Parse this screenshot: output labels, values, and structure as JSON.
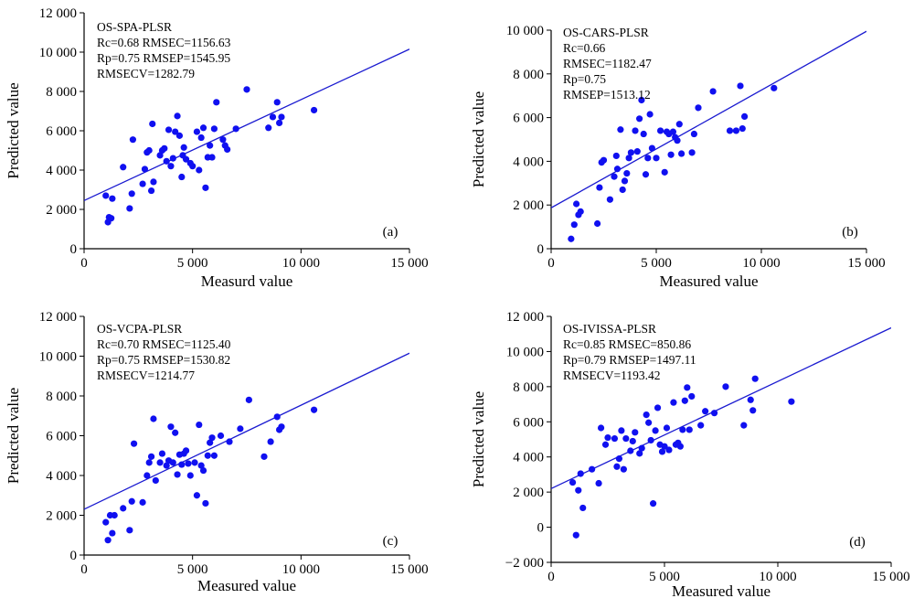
{
  "chart_data": [
    {
      "type": "scatter",
      "panel_label": "(a)",
      "xlabel": "Measurd value",
      "ylabel": "Predicted value",
      "xlim": [
        0,
        15000
      ],
      "ylim": [
        0,
        12000
      ],
      "xticks": [
        0,
        5000,
        10000,
        15000
      ],
      "xtick_labels": [
        "0",
        "5 000",
        "10 000",
        "15 000"
      ],
      "yticks": [
        0,
        2000,
        4000,
        6000,
        8000,
        10000,
        12000
      ],
      "ytick_labels": [
        "0",
        "2 000",
        "4 000",
        "6 000",
        "8 000",
        "10 000",
        "12 000"
      ],
      "annotations": [
        "OS-SPA-PLSR",
        "Rc=0.68 RMSEC=1156.63",
        "Rp=0.75 RMSEP=1545.95",
        "RMSECV=1282.79"
      ],
      "fit_line": {
        "x": [
          0,
          15000
        ],
        "y": [
          2450,
          10150
        ]
      },
      "marker_color": "#1010f0",
      "line_color": "#1a1ad0",
      "points": [
        [
          1000,
          2700
        ],
        [
          1100,
          1350
        ],
        [
          1150,
          1600
        ],
        [
          1250,
          1550
        ],
        [
          1300,
          2550
        ],
        [
          1800,
          4150
        ],
        [
          2100,
          2050
        ],
        [
          2200,
          2800
        ],
        [
          2250,
          5550
        ],
        [
          2700,
          3300
        ],
        [
          2800,
          4050
        ],
        [
          2900,
          4900
        ],
        [
          3000,
          5000
        ],
        [
          3100,
          2950
        ],
        [
          3150,
          6350
        ],
        [
          3200,
          3400
        ],
        [
          3500,
          4750
        ],
        [
          3600,
          5000
        ],
        [
          3700,
          5100
        ],
        [
          3800,
          4450
        ],
        [
          3900,
          6050
        ],
        [
          4000,
          4200
        ],
        [
          4100,
          4600
        ],
        [
          4200,
          5950
        ],
        [
          4300,
          6750
        ],
        [
          4400,
          5750
        ],
        [
          4500,
          3650
        ],
        [
          4550,
          4750
        ],
        [
          4600,
          5150
        ],
        [
          4700,
          4550
        ],
        [
          4900,
          4350
        ],
        [
          5000,
          4200
        ],
        [
          5200,
          5950
        ],
        [
          5300,
          4000
        ],
        [
          5400,
          5650
        ],
        [
          5500,
          6150
        ],
        [
          5600,
          3100
        ],
        [
          5700,
          4650
        ],
        [
          5800,
          5250
        ],
        [
          5900,
          4650
        ],
        [
          6000,
          6100
        ],
        [
          6100,
          7450
        ],
        [
          6400,
          5550
        ],
        [
          6500,
          5250
        ],
        [
          6600,
          5050
        ],
        [
          7000,
          6100
        ],
        [
          7500,
          8100
        ],
        [
          8500,
          6150
        ],
        [
          8700,
          6700
        ],
        [
          8900,
          7450
        ],
        [
          9000,
          6400
        ],
        [
          9100,
          6700
        ],
        [
          10600,
          7050
        ]
      ]
    },
    {
      "type": "scatter",
      "panel_label": "(b)",
      "xlabel": "Measured value",
      "ylabel": "Predicted value",
      "xlim": [
        0,
        15000
      ],
      "ylim": [
        0,
        10000
      ],
      "xticks": [
        0,
        5000,
        10000,
        15000
      ],
      "xtick_labels": [
        "0",
        "5 000",
        "10 000",
        "15 000"
      ],
      "yticks": [
        0,
        2000,
        4000,
        6000,
        8000,
        10000
      ],
      "ytick_labels": [
        "0",
        "2 000",
        "4 000",
        "6 000",
        "8 000",
        "10 000"
      ],
      "annotations": [
        "OS-CARS-PLSR",
        "Rc=0.66",
        "RMSEC=1182.47",
        "Rp=0.75",
        "RMSEP=1513.12"
      ],
      "fit_line": {
        "x": [
          0,
          15000
        ],
        "y": [
          1870,
          9950
        ]
      },
      "marker_color": "#1010f0",
      "line_color": "#1a1ad0",
      "points": [
        [
          950,
          450
        ],
        [
          1100,
          1100
        ],
        [
          1200,
          2050
        ],
        [
          1300,
          1550
        ],
        [
          1400,
          1700
        ],
        [
          2200,
          1150
        ],
        [
          2300,
          2800
        ],
        [
          2400,
          3950
        ],
        [
          2500,
          4050
        ],
        [
          2800,
          2250
        ],
        [
          3000,
          3300
        ],
        [
          3100,
          4250
        ],
        [
          3150,
          3650
        ],
        [
          3300,
          5450
        ],
        [
          3400,
          2700
        ],
        [
          3500,
          3100
        ],
        [
          3600,
          3450
        ],
        [
          3700,
          4150
        ],
        [
          3800,
          4400
        ],
        [
          4000,
          5400
        ],
        [
          4100,
          4450
        ],
        [
          4200,
          5950
        ],
        [
          4300,
          6800
        ],
        [
          4400,
          5250
        ],
        [
          4500,
          3400
        ],
        [
          4600,
          4150
        ],
        [
          4700,
          6150
        ],
        [
          4800,
          4600
        ],
        [
          5000,
          4150
        ],
        [
          5200,
          5400
        ],
        [
          5400,
          3500
        ],
        [
          5500,
          5350
        ],
        [
          5600,
          5250
        ],
        [
          5700,
          4300
        ],
        [
          5800,
          5350
        ],
        [
          5900,
          5100
        ],
        [
          6000,
          4950
        ],
        [
          6100,
          5700
        ],
        [
          6200,
          4350
        ],
        [
          6700,
          4400
        ],
        [
          6800,
          5250
        ],
        [
          7000,
          6450
        ],
        [
          7700,
          7200
        ],
        [
          8500,
          5400
        ],
        [
          8800,
          5400
        ],
        [
          9000,
          7450
        ],
        [
          9100,
          5500
        ],
        [
          9200,
          6050
        ],
        [
          10600,
          7350
        ]
      ]
    },
    {
      "type": "scatter",
      "panel_label": "(c)",
      "xlabel": "Measured value",
      "ylabel": "Predicted value",
      "xlim": [
        0,
        15000
      ],
      "ylim": [
        0,
        12000
      ],
      "xticks": [
        0,
        5000,
        10000,
        15000
      ],
      "xtick_labels": [
        "0",
        "5 000",
        "10 000",
        "15 000"
      ],
      "yticks": [
        0,
        2000,
        4000,
        6000,
        8000,
        10000,
        12000
      ],
      "ytick_labels": [
        "0",
        "2 000",
        "4 000",
        "6 000",
        "8 000",
        "10 000",
        "12 000"
      ],
      "annotations": [
        "OS-VCPA-PLSR",
        "Rc=0.70 RMSEC=1125.40",
        "Rp=0.75 RMSEP=1530.82",
        "RMSECV=1214.77"
      ],
      "fit_line": {
        "x": [
          0,
          15000
        ],
        "y": [
          2300,
          10150
        ]
      },
      "marker_color": "#1010f0",
      "line_color": "#1a1ad0",
      "points": [
        [
          1000,
          1650
        ],
        [
          1100,
          750
        ],
        [
          1200,
          2000
        ],
        [
          1300,
          1100
        ],
        [
          1400,
          2000
        ],
        [
          1800,
          2350
        ],
        [
          2100,
          1250
        ],
        [
          2200,
          2700
        ],
        [
          2300,
          5600
        ],
        [
          2700,
          2650
        ],
        [
          2900,
          4000
        ],
        [
          3000,
          4650
        ],
        [
          3100,
          4950
        ],
        [
          3200,
          6850
        ],
        [
          3300,
          3750
        ],
        [
          3500,
          4650
        ],
        [
          3600,
          5100
        ],
        [
          3800,
          4500
        ],
        [
          3900,
          4750
        ],
        [
          4000,
          6450
        ],
        [
          4100,
          4650
        ],
        [
          4200,
          6150
        ],
        [
          4300,
          4050
        ],
        [
          4400,
          5050
        ],
        [
          4500,
          4550
        ],
        [
          4600,
          5100
        ],
        [
          4700,
          5250
        ],
        [
          4800,
          4600
        ],
        [
          4900,
          4000
        ],
        [
          5100,
          4650
        ],
        [
          5200,
          3000
        ],
        [
          5300,
          6550
        ],
        [
          5400,
          4500
        ],
        [
          5500,
          4250
        ],
        [
          5600,
          2600
        ],
        [
          5700,
          5000
        ],
        [
          5800,
          5650
        ],
        [
          5900,
          5900
        ],
        [
          6000,
          5000
        ],
        [
          6300,
          6000
        ],
        [
          6700,
          5700
        ],
        [
          7200,
          6350
        ],
        [
          7600,
          7800
        ],
        [
          8300,
          4950
        ],
        [
          8600,
          5700
        ],
        [
          8900,
          6950
        ],
        [
          9000,
          6300
        ],
        [
          9100,
          6450
        ],
        [
          10600,
          7300
        ]
      ]
    },
    {
      "type": "scatter",
      "panel_label": "(d)",
      "xlabel": "Measured value",
      "ylabel": "Predicted value",
      "xlim": [
        0,
        15000
      ],
      "ylim": [
        -2000,
        12000
      ],
      "xticks": [
        0,
        5000,
        10000,
        15000
      ],
      "xtick_labels": [
        "0",
        "5 000",
        "10 000",
        "15 000"
      ],
      "yticks": [
        -2000,
        0,
        2000,
        4000,
        6000,
        8000,
        10000,
        12000
      ],
      "ytick_labels": [
        "−2 000",
        "0",
        "2 000",
        "4 000",
        "6 000",
        "8 000",
        "10 000",
        "12 000"
      ],
      "annotations": [
        "OS-IVISSA-PLSR",
        "Rc=0.85 RMSEC=850.86",
        "Rp=0.79 RMSEP=1497.11",
        "RMSECV=1193.42"
      ],
      "fit_line": {
        "x": [
          0,
          15000
        ],
        "y": [
          2200,
          11350
        ]
      },
      "marker_color": "#1010f0",
      "line_color": "#1a1ad0",
      "points": [
        [
          950,
          2550
        ],
        [
          1100,
          -450
        ],
        [
          1200,
          2100
        ],
        [
          1300,
          3050
        ],
        [
          1400,
          1100
        ],
        [
          1800,
          3300
        ],
        [
          2100,
          2500
        ],
        [
          2200,
          5650
        ],
        [
          2400,
          4700
        ],
        [
          2500,
          5100
        ],
        [
          2800,
          5050
        ],
        [
          2900,
          3450
        ],
        [
          3000,
          3900
        ],
        [
          3100,
          5500
        ],
        [
          3200,
          3300
        ],
        [
          3300,
          5050
        ],
        [
          3500,
          4350
        ],
        [
          3600,
          4900
        ],
        [
          3700,
          5400
        ],
        [
          3900,
          4200
        ],
        [
          4000,
          4500
        ],
        [
          4200,
          6400
        ],
        [
          4300,
          5950
        ],
        [
          4400,
          4950
        ],
        [
          4500,
          1350
        ],
        [
          4600,
          5500
        ],
        [
          4700,
          6800
        ],
        [
          4800,
          4700
        ],
        [
          4900,
          4300
        ],
        [
          5000,
          4600
        ],
        [
          5100,
          5650
        ],
        [
          5200,
          4400
        ],
        [
          5400,
          7100
        ],
        [
          5500,
          4700
        ],
        [
          5600,
          4800
        ],
        [
          5700,
          4600
        ],
        [
          5800,
          5550
        ],
        [
          5900,
          7200
        ],
        [
          6000,
          7950
        ],
        [
          6100,
          5550
        ],
        [
          6200,
          7450
        ],
        [
          6600,
          5800
        ],
        [
          6800,
          6600
        ],
        [
          7200,
          6500
        ],
        [
          7700,
          8000
        ],
        [
          8500,
          5800
        ],
        [
          8800,
          7250
        ],
        [
          8900,
          6650
        ],
        [
          9000,
          8450
        ],
        [
          10600,
          7150
        ]
      ]
    }
  ]
}
